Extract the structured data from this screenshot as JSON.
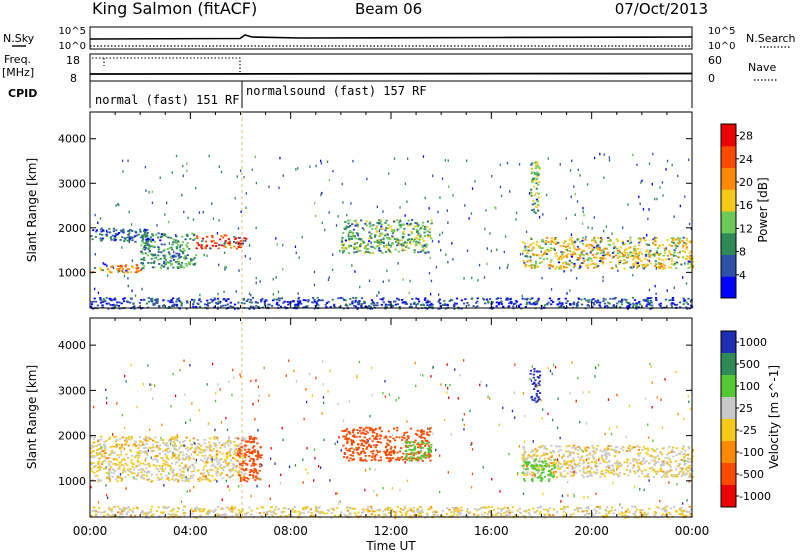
{
  "header": {
    "station": "King Salmon (fitACF)",
    "beam": "Beam 06",
    "date": "07/Oct/2013"
  },
  "top_panels": {
    "nsky_label": "N.Sky",
    "nsky_ticks": [
      "10^5",
      "10^0"
    ],
    "nsearch_label": "N.Search",
    "nsearch_ticks": [
      "10^5",
      "10^0"
    ],
    "freq_label": "Freq.",
    "freq_unit": "[MHz]",
    "freq_ticks": [
      "18",
      "8"
    ],
    "nave_label": "Nave",
    "nave_ticks": [
      "60",
      "0"
    ],
    "cpid_label": "CPID",
    "cpid_modes": [
      "normal (fast) 151 RF",
      "normalsound (fast) 157 RF"
    ]
  },
  "chart_data": [
    {
      "type": "heatmap",
      "title": "",
      "quantity": "Power",
      "xlabel": "Time UT",
      "ylabel": "Slant Range [km]",
      "x_ticks": [
        "00:00",
        "04:00",
        "08:00",
        "12:00",
        "16:00",
        "20:00",
        "00:00"
      ],
      "y_ticks": [
        "1000",
        "2000",
        "3000",
        "4000"
      ],
      "x_range_hours": [
        0,
        24
      ],
      "y_range_km": [
        200,
        4600
      ],
      "colorbar": {
        "label": "Power [dB]",
        "ticks": [
          "4",
          "8",
          "12",
          "16",
          "20",
          "24",
          "28"
        ],
        "range": [
          0,
          30
        ],
        "colors": [
          "#0000ff",
          "#2d51a8",
          "#2e8b57",
          "#6ccb56",
          "#f5c918",
          "#ff8a00",
          "#ff4a00",
          "#ee0000"
        ]
      },
      "regions": [
        {
          "t0": 0.0,
          "t1": 2.0,
          "r0": 1000,
          "r1": 1200,
          "value": 21
        },
        {
          "t0": 2.0,
          "t1": 4.2,
          "r0": 1100,
          "r1": 1900,
          "value": 10
        },
        {
          "t0": 4.2,
          "t1": 6.2,
          "r0": 1550,
          "r1": 1850,
          "value": 25
        },
        {
          "t0": 0.0,
          "t1": 2.5,
          "r0": 1700,
          "r1": 2000,
          "value": 6
        },
        {
          "t0": 10.0,
          "t1": 13.6,
          "r0": 1450,
          "r1": 2200,
          "value": 13
        },
        {
          "t0": 17.2,
          "t1": 24.0,
          "r0": 1100,
          "r1": 1800,
          "value": 17
        },
        {
          "t0": 17.5,
          "t1": 17.9,
          "r0": 2300,
          "r1": 3500,
          "value": 14
        },
        {
          "t0": 0.0,
          "t1": 24.0,
          "r0": 200,
          "r1": 450,
          "value": 5
        }
      ]
    },
    {
      "type": "heatmap",
      "title": "",
      "quantity": "Velocity",
      "xlabel": "Time UT",
      "ylabel": "Slant Range [km]",
      "x_ticks": [
        "00:00",
        "04:00",
        "08:00",
        "12:00",
        "16:00",
        "20:00",
        "00:00"
      ],
      "y_ticks": [
        "1000",
        "2000",
        "3000",
        "4000"
      ],
      "x_range_hours": [
        0,
        24
      ],
      "y_range_km": [
        200,
        4600
      ],
      "colorbar": {
        "label": "Velocity [m s^-1]",
        "ticks": [
          "1000",
          "500",
          "100",
          "25",
          "-25",
          "-100",
          "-500",
          "-1000"
        ],
        "colors": [
          "#1f2db5",
          "#2e8b57",
          "#52c832",
          "#c8c8c8",
          "#f5c918",
          "#ff8a00",
          "#ff4a00",
          "#ee0000"
        ]
      },
      "regions": [
        {
          "t0": 0.0,
          "t1": 6.2,
          "r0": 1000,
          "r1": 2000,
          "value": 0
        },
        {
          "t0": 5.8,
          "t1": 6.8,
          "r0": 1000,
          "r1": 2000,
          "value": -150
        },
        {
          "t0": 10.0,
          "t1": 13.6,
          "r0": 1450,
          "r1": 2200,
          "value": -150
        },
        {
          "t0": 12.5,
          "t1": 13.6,
          "r0": 1450,
          "r1": 1900,
          "value": 200
        },
        {
          "t0": 17.2,
          "t1": 24.0,
          "r0": 1100,
          "r1": 1800,
          "value": 0
        },
        {
          "t0": 17.5,
          "t1": 17.9,
          "r0": 2700,
          "r1": 3500,
          "value": 900
        },
        {
          "t0": 17.2,
          "t1": 18.5,
          "r0": 1000,
          "r1": 1500,
          "value": 200
        },
        {
          "t0": 0.0,
          "t1": 24.0,
          "r0": 200,
          "r1": 450,
          "value": 0
        }
      ]
    }
  ]
}
